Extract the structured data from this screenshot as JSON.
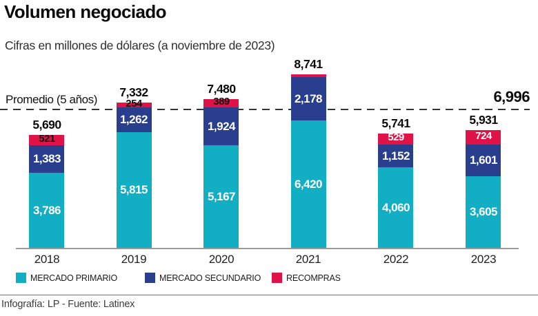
{
  "title": "Volumen negociado",
  "subtitle": "Cifras en millones de dólares (a noviembre de 2023)",
  "average_line": {
    "label": "Promedio (5 años)",
    "value": 6996,
    "value_label": "6,996"
  },
  "colors": {
    "primario": "#12afc4",
    "secundario": "#293e8c",
    "recompras": "#df1347",
    "axis": "#9b9b9b"
  },
  "legend": [
    {
      "label": "MERCADO PRIMARIO",
      "color_key": "primario"
    },
    {
      "label": "MERCADO SECUNDARIO",
      "color_key": "secundario"
    },
    {
      "label": "RECOMPRAS",
      "color_key": "recompras"
    }
  ],
  "chart_data": {
    "type": "bar",
    "stacked": true,
    "title": "Volumen negociado",
    "subtitle": "Cifras en millones de dólares (a noviembre de 2023)",
    "categories": [
      "2018",
      "2019",
      "2020",
      "2021",
      "2022",
      "2023"
    ],
    "series": [
      {
        "name": "MERCADO PRIMARIO",
        "color_key": "primario",
        "values": [
          3786,
          5815,
          5167,
          6420,
          4060,
          3605
        ],
        "labels": [
          "3,786",
          "5,815",
          "5,167",
          "6,420",
          "4,060",
          "3,605"
        ]
      },
      {
        "name": "MERCADO SECUNDARIO",
        "color_key": "secundario",
        "values": [
          1383,
          1262,
          1924,
          2178,
          1152,
          1601
        ],
        "labels": [
          "1,383",
          "1,262",
          "1,924",
          "2,178",
          "1,152",
          "1,601"
        ]
      },
      {
        "name": "RECOMPRAS",
        "color_key": "recompras",
        "values": [
          521,
          254,
          389,
          143,
          529,
          724
        ],
        "labels": [
          "521",
          "254",
          "389",
          "",
          "529",
          "724"
        ],
        "label_colors": [
          "#111111",
          "#111111",
          "#111111",
          "",
          "#ffffff",
          "#ffffff"
        ]
      }
    ],
    "totals": [
      5690,
      7332,
      7480,
      8741,
      5741,
      5931
    ],
    "total_labels": [
      "5,690",
      "7,332",
      "7,480",
      "8,741",
      "5,741",
      "5,931"
    ],
    "average": 6996,
    "average_label": "Promedio (5 años)",
    "ylim": [
      0,
      8741
    ],
    "grid": false,
    "legend_position": "bottom"
  },
  "footer": {
    "credit": "Infografía: LP - Fuente: Latinex"
  }
}
